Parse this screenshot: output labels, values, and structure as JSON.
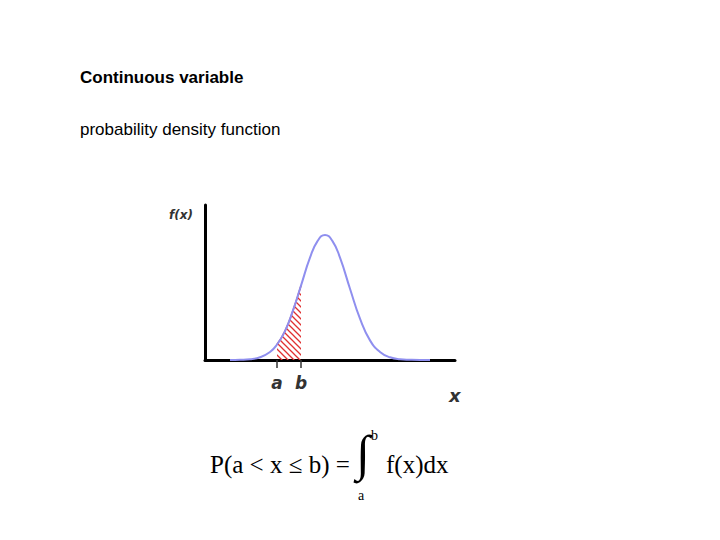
{
  "slide": {
    "title": "Continuous variable",
    "subtitle": "probability density function"
  },
  "chart_data": {
    "type": "line",
    "x_label": "x",
    "y_label": "f(x)",
    "color": "#8f8fef",
    "x": [
      1.0,
      1.4,
      1.8,
      2.2,
      2.6,
      2.88,
      3.2,
      3.52,
      3.84,
      4.2,
      4.5,
      4.8,
      5.1,
      5.4,
      5.8,
      6.2,
      6.6,
      7.0,
      7.4,
      7.8,
      8.2,
      8.6,
      9.0
    ],
    "values": [
      0,
      0.2,
      0.7,
      2.6,
      7.8,
      15,
      28,
      48,
      72,
      99,
      115,
      121,
      115,
      99,
      69,
      40,
      19,
      7.8,
      2.6,
      0.7,
      0.2,
      0,
      0
    ],
    "xlim": [
      0,
      10
    ],
    "ylim": [
      0,
      150
    ],
    "xticks": [
      {
        "value": 2.88,
        "label": "a"
      },
      {
        "value": 3.84,
        "label": "b"
      }
    ],
    "tick_labels": "x",
    "grid": false,
    "shaded": {
      "from": 2.88,
      "to": 3.84,
      "color": "#e03030"
    }
  },
  "formula": {
    "lhs": "P(a < x ≤ b) =",
    "symbol": "∫",
    "upper": "b",
    "lower": "a",
    "integrand": "f(x)dx"
  }
}
